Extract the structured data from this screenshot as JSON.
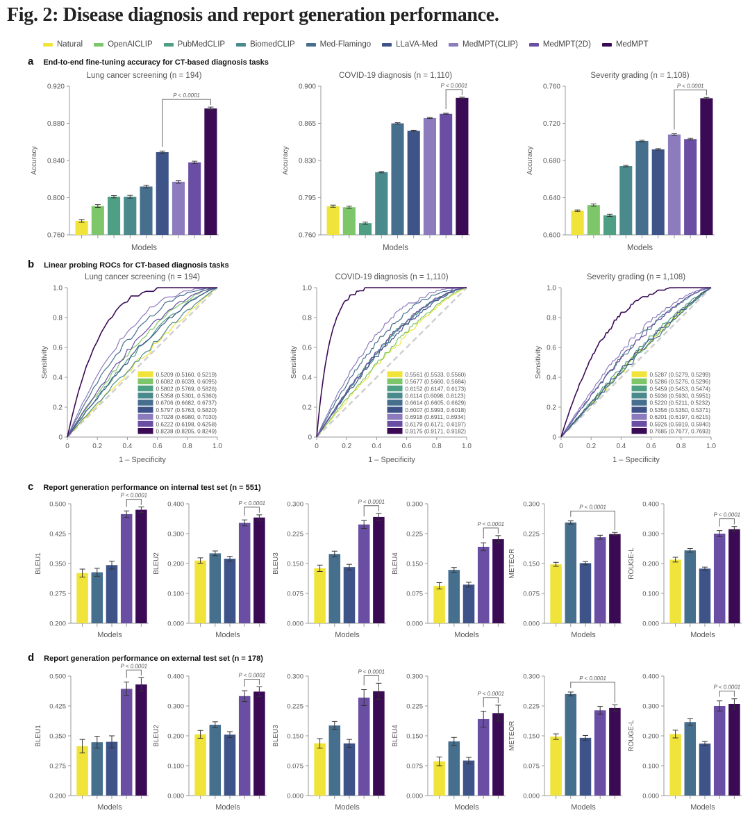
{
  "figure_title": "Fig. 2: Disease diagnosis and report generation performance.",
  "legend": [
    {
      "name": "Natural",
      "color": "#f0e33a"
    },
    {
      "name": "OpenAICLIP",
      "color": "#7ec66a"
    },
    {
      "name": "PubMedCLIP",
      "color": "#4e9f84"
    },
    {
      "name": "BiomedCLIP",
      "color": "#4a8a8c"
    },
    {
      "name": "Med-Flamingo",
      "color": "#466f8e"
    },
    {
      "name": "LLaVA-Med",
      "color": "#3e5488"
    },
    {
      "name": "MedMPT(CLIP)",
      "color": "#8c7bbd"
    },
    {
      "name": "MedMPT(2D)",
      "color": "#6a4ea3"
    },
    {
      "name": "MedMPT",
      "color": "#3a0a55"
    }
  ],
  "sections": {
    "a": {
      "letter": "a",
      "title": "End-to-end fine-tuning accuracy for CT-based diagnosis tasks"
    },
    "b": {
      "letter": "b",
      "title": "Linear probing ROCs for CT-based diagnosis tasks"
    },
    "c": {
      "letter": "c",
      "title": "Report generation performance on internal test set (n = 551)"
    },
    "d": {
      "letter": "d",
      "title": "Report generation performance on external test set (n = 178)"
    }
  },
  "chart_data": [
    {
      "id": "a1",
      "panel": "a",
      "type": "bar",
      "title": "Lung cancer screening (n = 194)",
      "xlabel": "Models",
      "ylabel": "Accuracy",
      "categories": [
        "Natural",
        "OpenAICLIP",
        "PubMedCLIP",
        "BiomedCLIP",
        "Med-Flamingo",
        "LLaVA-Med",
        "MedMPT(CLIP)",
        "MedMPT(2D)",
        "MedMPT"
      ],
      "values": [
        0.775,
        0.791,
        0.801,
        0.801,
        0.812,
        0.849,
        0.817,
        0.838,
        0.896
      ],
      "errors": [
        0.0015,
        0.0015,
        0.0012,
        0.0015,
        0.0015,
        0.0012,
        0.0015,
        0.0012,
        0.0015
      ],
      "ylim": [
        0.76,
        0.92
      ],
      "yticks": [
        "0.760",
        "0.800",
        "0.840",
        "0.880",
        "0.920"
      ],
      "significance": {
        "from": "LLaVA-Med",
        "to": "MedMPT",
        "label": "P < 0.0001"
      }
    },
    {
      "id": "a2",
      "panel": "a",
      "type": "bar",
      "title": "COVID-19 diagnosis (n = 1,110)",
      "xlabel": "Models",
      "ylabel": "Accuracy",
      "categories": [
        "Natural",
        "OpenAICLIP",
        "PubMedCLIP",
        "BiomedCLIP",
        "Med-Flamingo",
        "LLaVA-Med",
        "MedMPT(CLIP)",
        "MedMPT(2D)",
        "MedMPT"
      ],
      "values": [
        0.787,
        0.786,
        0.771,
        0.819,
        0.865,
        0.858,
        0.87,
        0.874,
        0.889
      ],
      "errors": [
        0.001,
        0.001,
        0.001,
        0.0006,
        0.0006,
        0.0005,
        0.0005,
        0.0005,
        0.0006
      ],
      "ylim": [
        0.76,
        0.9
      ],
      "yticks": [
        "0.760",
        "0.795",
        "0.830",
        "0.865",
        "0.900"
      ],
      "significance": {
        "from": "MedMPT(2D)",
        "to": "MedMPT",
        "label": "P < 0.0001"
      }
    },
    {
      "id": "a3",
      "panel": "a",
      "type": "bar",
      "title": "Severity grading (n = 1,108)",
      "xlabel": "Models",
      "ylabel": "Accuracy",
      "categories": [
        "Natural",
        "OpenAICLIP",
        "PubMedCLIP",
        "BiomedCLIP",
        "Med-Flamingo",
        "LLaVA-Med",
        "MedMPT(CLIP)",
        "MedMPT(2D)",
        "MedMPT"
      ],
      "values": [
        0.626,
        0.632,
        0.621,
        0.674,
        0.701,
        0.692,
        0.708,
        0.703,
        0.747
      ],
      "errors": [
        0.0008,
        0.0012,
        0.0012,
        0.0008,
        0.0008,
        0.0008,
        0.0008,
        0.0008,
        0.0008
      ],
      "ylim": [
        0.6,
        0.76
      ],
      "yticks": [
        "0.600",
        "0.640",
        "0.680",
        "0.720",
        "0.760"
      ],
      "significance": {
        "from": "MedMPT(CLIP)",
        "to": "MedMPT",
        "label": "P < 0.0001"
      }
    },
    {
      "id": "b1",
      "panel": "b",
      "type": "line",
      "title": "Lung cancer screening (n = 194)",
      "xlabel": "1 – Specificity",
      "ylabel": "Sensitivity",
      "xlim": [
        0,
        1
      ],
      "ylim": [
        0,
        1
      ],
      "ticks": [
        "0",
        "0.2",
        "0.4",
        "0.6",
        "0.8",
        "1.0"
      ],
      "auc": [
        "0.5209 (0.5160, 0.5219)",
        "0.6082 (0.6039, 0.6095)",
        "0.5802 (0.5769, 0.5826)",
        "0.5358 (0.5301, 0.5360)",
        "0.6706 (0.6682, 0.6737)",
        "0.5797 (0.5763, 0.5820)",
        "0.7028 (0.6980, 0.7030)",
        "0.6222 (0.6198, 0.6258)",
        "0.8238 (0.8205, 0.8249)"
      ],
      "auc_values": [
        0.5209,
        0.6082,
        0.5802,
        0.5358,
        0.6706,
        0.5797,
        0.7028,
        0.6222,
        0.8238
      ]
    },
    {
      "id": "b2",
      "panel": "b",
      "type": "line",
      "title": "COVID-19 diagnosis (n = 1,110)",
      "xlabel": "1 – Specificity",
      "ylabel": "Sensitivity",
      "xlim": [
        0,
        1
      ],
      "ylim": [
        0,
        1
      ],
      "ticks": [
        "0",
        "0.2",
        "0.4",
        "0.6",
        "0.8",
        "1.0"
      ],
      "auc": [
        "0.5561 (0.5533, 0.5560)",
        "0.5677 (0.5660, 0.5684)",
        "0.6152 (0.6147, 0.6173)",
        "0.6114 (0.6098, 0.6123)",
        "0.6614 (0.6605, 0.6629)",
        "0.6007 (0.5993, 0.6018)",
        "0.6918 (0.6911, 0.6934)",
        "0.6179 (0.6171, 0.6197)",
        "0.9175 (0.9171, 0.9182)"
      ],
      "auc_values": [
        0.5561,
        0.5677,
        0.6152,
        0.6114,
        0.6614,
        0.6007,
        0.6918,
        0.6179,
        0.9175
      ]
    },
    {
      "id": "b3",
      "panel": "b",
      "type": "line",
      "title": "Severity grading (n = 1,108)",
      "xlabel": "1 – Specificity",
      "ylabel": "Sensitivity",
      "xlim": [
        0,
        1
      ],
      "ylim": [
        0,
        1
      ],
      "ticks": [
        "0",
        "0.2",
        "0.4",
        "0.6",
        "0.8",
        "1.0"
      ],
      "auc": [
        "0.5287 (0.5279, 0.5299)",
        "0.5286 (0.5276, 0.5296)",
        "0.5459 (0.5453, 0.5474)",
        "0.5936 (0.5930, 0.5951)",
        "0.5220 (0.5211, 0.5232)",
        "0.5356 (0.5350, 0.5371)",
        "0.6201 (0.6197, 0.6215)",
        "0.5926 (0.5919, 0.5940)",
        "0.7685 (0.7677, 0.7693)"
      ],
      "auc_values": [
        0.5287,
        0.5286,
        0.5459,
        0.5936,
        0.522,
        0.5356,
        0.6201,
        0.5926,
        0.7685
      ]
    },
    {
      "id": "c1",
      "panel": "c",
      "type": "bar",
      "ylabel": "BLEU1",
      "xlabel": "Models",
      "categories": [
        "Natural",
        "Med-Flamingo",
        "LLaVA-Med",
        "MedMPT(2D)",
        "MedMPT"
      ],
      "values": [
        0.326,
        0.328,
        0.346,
        0.474,
        0.485
      ],
      "errors": [
        0.01,
        0.01,
        0.01,
        0.008,
        0.007
      ],
      "ylim": [
        0.2,
        0.5
      ],
      "yticks": [
        "0.200",
        "0.275",
        "0.350",
        "0.425",
        "0.500"
      ],
      "significance": {
        "from": "MedMPT(2D)",
        "to": "MedMPT",
        "label": "P < 0.0001"
      }
    },
    {
      "id": "c2",
      "panel": "c",
      "type": "bar",
      "ylabel": "BLEU2",
      "xlabel": "Models",
      "categories": [
        "Natural",
        "Med-Flamingo",
        "LLaVA-Med",
        "MedMPT(2D)",
        "MedMPT"
      ],
      "values": [
        0.21,
        0.234,
        0.216,
        0.336,
        0.354
      ],
      "errors": [
        0.009,
        0.008,
        0.008,
        0.01,
        0.009
      ],
      "ylim": [
        0,
        0.4
      ],
      "yticks": [
        "0.000",
        "0.100",
        "0.200",
        "0.300",
        "0.400"
      ],
      "significance": {
        "from": "MedMPT(2D)",
        "to": "MedMPT",
        "label": "P < 0.0001"
      }
    },
    {
      "id": "c3",
      "panel": "c",
      "type": "bar",
      "ylabel": "BLEU3",
      "xlabel": "Models",
      "categories": [
        "Natural",
        "Med-Flamingo",
        "LLaVA-Med",
        "MedMPT(2D)",
        "MedMPT"
      ],
      "values": [
        0.138,
        0.174,
        0.141,
        0.248,
        0.267
      ],
      "errors": [
        0.008,
        0.007,
        0.007,
        0.01,
        0.009
      ],
      "ylim": [
        0,
        0.3
      ],
      "yticks": [
        "0.000",
        "0.075",
        "0.150",
        "0.225",
        "0.300"
      ],
      "significance": {
        "from": "MedMPT(2D)",
        "to": "MedMPT",
        "label": "P < 0.0001"
      }
    },
    {
      "id": "c4",
      "panel": "c",
      "type": "bar",
      "ylabel": "BLEU4",
      "xlabel": "Models",
      "categories": [
        "Natural",
        "Med-Flamingo",
        "LLaVA-Med",
        "MedMPT(2D)",
        "MedMPT"
      ],
      "values": [
        0.094,
        0.134,
        0.097,
        0.192,
        0.211
      ],
      "errors": [
        0.008,
        0.006,
        0.006,
        0.01,
        0.009
      ],
      "ylim": [
        0,
        0.3
      ],
      "yticks": [
        "0.000",
        "0.075",
        "0.150",
        "0.225",
        "0.300"
      ],
      "significance": {
        "from": "MedMPT(2D)",
        "to": "MedMPT",
        "label": "P < 0.0001"
      }
    },
    {
      "id": "c5",
      "panel": "c",
      "type": "bar",
      "ylabel": "METEOR",
      "xlabel": "Models",
      "categories": [
        "Natural",
        "Med-Flamingo",
        "LLaVA-Med",
        "MedMPT(2D)",
        "MedMPT"
      ],
      "values": [
        0.148,
        0.253,
        0.151,
        0.216,
        0.224
      ],
      "errors": [
        0.005,
        0.004,
        0.004,
        0.005,
        0.004
      ],
      "ylim": [
        0,
        0.3
      ],
      "yticks": [
        "0.000",
        "0.075",
        "0.150",
        "0.225",
        "0.300"
      ],
      "significance": {
        "from": "Med-Flamingo",
        "to": "MedMPT",
        "label": "P < 0.0001"
      }
    },
    {
      "id": "c6",
      "panel": "c",
      "type": "bar",
      "ylabel": "ROUGE-L",
      "xlabel": "Models",
      "categories": [
        "Natural",
        "Med-Flamingo",
        "LLaVA-Med",
        "MedMPT(2D)",
        "MedMPT"
      ],
      "values": [
        0.213,
        0.244,
        0.183,
        0.3,
        0.315
      ],
      "errors": [
        0.008,
        0.006,
        0.005,
        0.01,
        0.009
      ],
      "ylim": [
        0,
        0.4
      ],
      "yticks": [
        "0.000",
        "0.100",
        "0.200",
        "0.300",
        "0.400"
      ],
      "significance": {
        "from": "MedMPT(2D)",
        "to": "MedMPT",
        "label": "P < 0.0001"
      }
    },
    {
      "id": "d1",
      "panel": "d",
      "type": "bar",
      "ylabel": "BLEU1",
      "xlabel": "Models",
      "categories": [
        "Natural",
        "Med-Flamingo",
        "LLaVA-Med",
        "MedMPT(2D)",
        "MedMPT"
      ],
      "values": [
        0.324,
        0.334,
        0.335,
        0.468,
        0.479
      ],
      "errors": [
        0.017,
        0.015,
        0.015,
        0.017,
        0.017
      ],
      "ylim": [
        0.2,
        0.5
      ],
      "yticks": [
        "0.200",
        "0.275",
        "0.350",
        "0.425",
        "0.500"
      ],
      "significance": {
        "from": "MedMPT(2D)",
        "to": "MedMPT",
        "label": "P < 0.0001"
      }
    },
    {
      "id": "d2",
      "panel": "d",
      "type": "bar",
      "ylabel": "BLEU2",
      "xlabel": "Models",
      "categories": [
        "Natural",
        "Med-Flamingo",
        "LLaVA-Med",
        "MedMPT(2D)",
        "MedMPT"
      ],
      "values": [
        0.205,
        0.237,
        0.204,
        0.333,
        0.348
      ],
      "errors": [
        0.013,
        0.01,
        0.01,
        0.018,
        0.016
      ],
      "ylim": [
        0,
        0.4
      ],
      "yticks": [
        "0.000",
        "0.100",
        "0.200",
        "0.300",
        "0.400"
      ],
      "significance": {
        "from": "MedMPT(2D)",
        "to": "MedMPT",
        "label": "P < 0.0001"
      }
    },
    {
      "id": "d3",
      "panel": "d",
      "type": "bar",
      "ylabel": "BLEU3",
      "xlabel": "Models",
      "categories": [
        "Natural",
        "Med-Flamingo",
        "LLaVA-Med",
        "MedMPT(2D)",
        "MedMPT"
      ],
      "values": [
        0.131,
        0.176,
        0.131,
        0.246,
        0.262
      ],
      "errors": [
        0.012,
        0.01,
        0.01,
        0.02,
        0.02
      ],
      "ylim": [
        0,
        0.3
      ],
      "yticks": [
        "0.000",
        "0.075",
        "0.150",
        "0.225",
        "0.300"
      ],
      "significance": {
        "from": "MedMPT(2D)",
        "to": "MedMPT",
        "label": "P < 0.0001"
      }
    },
    {
      "id": "d4",
      "panel": "d",
      "type": "bar",
      "ylabel": "BLEU4",
      "xlabel": "Models",
      "categories": [
        "Natural",
        "Med-Flamingo",
        "LLaVA-Med",
        "MedMPT(2D)",
        "MedMPT"
      ],
      "values": [
        0.086,
        0.136,
        0.088,
        0.192,
        0.207
      ],
      "errors": [
        0.011,
        0.01,
        0.008,
        0.02,
        0.02
      ],
      "ylim": [
        0,
        0.3
      ],
      "yticks": [
        "0.000",
        "0.075",
        "0.150",
        "0.225",
        "0.300"
      ],
      "significance": {
        "from": "MedMPT(2D)",
        "to": "MedMPT",
        "label": "P < 0.0001"
      }
    },
    {
      "id": "d5",
      "panel": "d",
      "type": "bar",
      "ylabel": "METEOR",
      "xlabel": "Models",
      "categories": [
        "Natural",
        "Med-Flamingo",
        "LLaVA-Med",
        "MedMPT(2D)",
        "MedMPT"
      ],
      "values": [
        0.148,
        0.255,
        0.145,
        0.214,
        0.22
      ],
      "errors": [
        0.007,
        0.005,
        0.006,
        0.01,
        0.008
      ],
      "ylim": [
        0,
        0.3
      ],
      "yticks": [
        "0.000",
        "0.075",
        "0.150",
        "0.225",
        "0.300"
      ],
      "significance": {
        "from": "Med-Flamingo",
        "to": "MedMPT",
        "label": "P < 0.0001"
      }
    },
    {
      "id": "d6",
      "panel": "d",
      "type": "bar",
      "ylabel": "ROUGE-L",
      "xlabel": "Models",
      "categories": [
        "Natural",
        "Med-Flamingo",
        "LLaVA-Med",
        "MedMPT(2D)",
        "MedMPT"
      ],
      "values": [
        0.206,
        0.246,
        0.174,
        0.3,
        0.307
      ],
      "errors": [
        0.013,
        0.011,
        0.007,
        0.017,
        0.017
      ],
      "ylim": [
        0,
        0.4
      ],
      "yticks": [
        "0.000",
        "0.100",
        "0.200",
        "0.300",
        "0.400"
      ],
      "significance": {
        "from": "MedMPT(2D)",
        "to": "MedMPT",
        "label": "P < 0.0001"
      }
    }
  ]
}
